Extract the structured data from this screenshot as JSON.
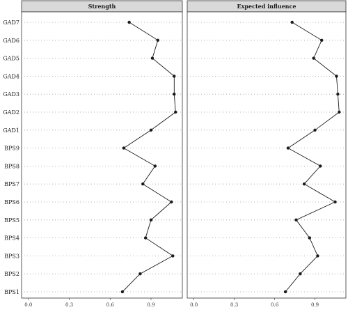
{
  "chart_data": {
    "type": "line",
    "categories": [
      "GAD7",
      "GAD6",
      "GAD5",
      "GAD4",
      "GAD3",
      "GAD2",
      "GAD1",
      "BPS9",
      "BPS8",
      "BPS7",
      "BPS6",
      "BPS5",
      "BPS4",
      "BPS3",
      "BPS2",
      "BPS1"
    ],
    "xlim": [
      -0.05,
      1.13
    ],
    "xticks": [
      0.0,
      0.3,
      0.6,
      0.9
    ],
    "xtick_labels": [
      "0.0",
      "0.3",
      "0.6",
      "0.9"
    ],
    "grid": true,
    "panels": [
      {
        "title": "Strength",
        "values": [
          0.74,
          0.95,
          0.91,
          1.07,
          1.07,
          1.08,
          0.9,
          0.7,
          0.93,
          0.84,
          1.05,
          0.9,
          0.86,
          1.06,
          0.82,
          0.69
        ]
      },
      {
        "title": "Expected influence",
        "values": [
          0.73,
          0.95,
          0.89,
          1.06,
          1.07,
          1.08,
          0.9,
          0.7,
          0.94,
          0.82,
          1.05,
          0.76,
          0.86,
          0.92,
          0.79,
          0.68
        ]
      }
    ]
  }
}
